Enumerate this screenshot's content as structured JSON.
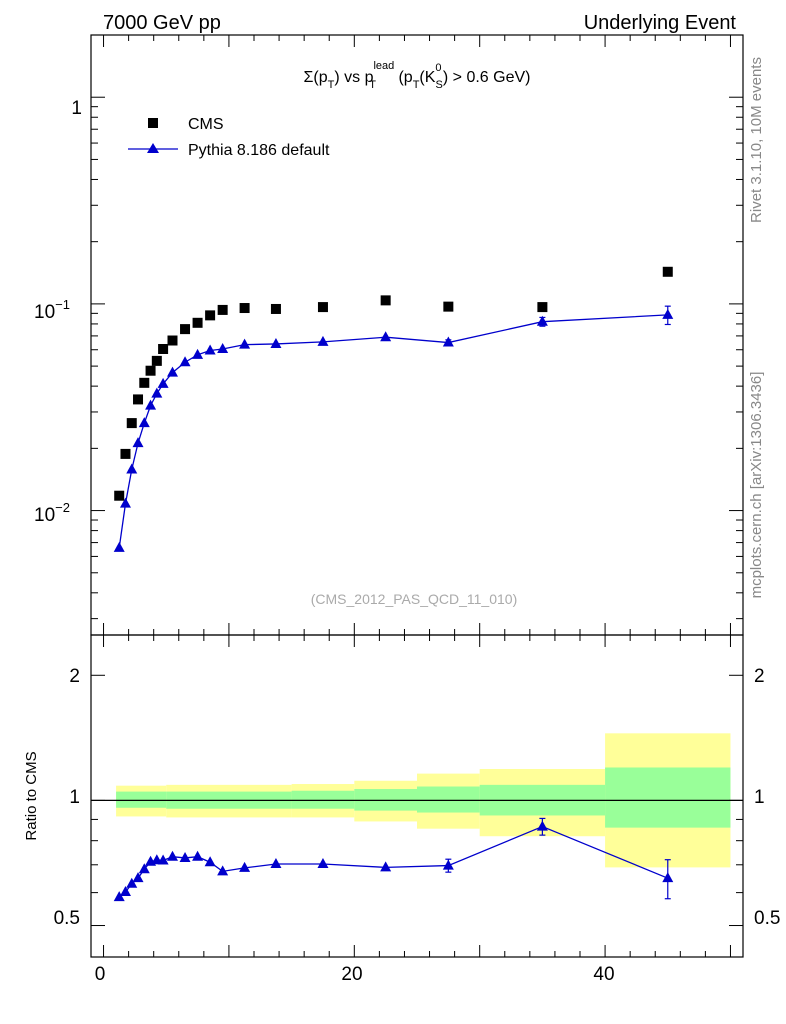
{
  "header": {
    "energy_label": "7000 GeV pp",
    "process_label": "Underlying Event"
  },
  "side_labels": {
    "rivet": "Rivet 3.1.10,  10M events",
    "mcplots": "mcplots.cern.ch [arXiv:1306.3436]"
  },
  "colors": {
    "mc": "#0000cc",
    "data": "#000000",
    "band_inner": "#99ff99",
    "band_outer": "#ffff99"
  },
  "chart_data": [
    {
      "type": "scatter",
      "title_parts": {
        "sigma": "Σ(p",
        "t_sub": "T",
        "vs": ") vs p",
        "lead_sup": "lead",
        "lead_sub": "T",
        "open": " (p",
        "k_t_sub": "T",
        "k_mid": "(K",
        "k_sup": "0",
        "k_sub": "S",
        "tail": ") > 0.6 GeV)"
      },
      "yscale": "log",
      "xlim": [
        -1,
        51
      ],
      "ylim": [
        0.0025,
        2.0
      ],
      "y_ticks": [
        {
          "value": 0.01,
          "base": "10",
          "exp": "−2"
        },
        {
          "value": 0.1,
          "base": "10",
          "exp": "−1"
        },
        {
          "value": 1,
          "base": "1",
          "exp": ""
        }
      ],
      "legend": [
        "CMS",
        "Pythia 8.186 default"
      ],
      "source_label": "(CMS_2012_PAS_QCD_11_010)",
      "series": [
        {
          "name": "CMS",
          "marker": "square",
          "x": [
            1.25,
            1.75,
            2.25,
            2.75,
            3.25,
            3.75,
            4.25,
            4.75,
            5.5,
            6.5,
            7.5,
            8.5,
            9.5,
            11.25,
            13.75,
            17.5,
            22.5,
            27.5,
            35,
            45
          ],
          "y": [
            0.0118,
            0.0188,
            0.0265,
            0.0345,
            0.0415,
            0.0475,
            0.053,
            0.0605,
            0.0665,
            0.0755,
            0.081,
            0.088,
            0.0935,
            0.0955,
            0.0945,
            0.0965,
            0.104,
            0.097,
            0.0965,
            0.143
          ]
        },
        {
          "name": "Pythia 8.186 default",
          "marker": "triangle",
          "x": [
            1.25,
            1.75,
            2.25,
            2.75,
            3.25,
            3.75,
            4.25,
            4.75,
            5.5,
            6.5,
            7.5,
            8.5,
            9.5,
            11.25,
            13.75,
            17.5,
            22.5,
            27.5,
            35,
            45
          ],
          "y": [
            0.0066,
            0.0108,
            0.0158,
            0.0212,
            0.0265,
            0.0322,
            0.0368,
            0.041,
            0.0465,
            0.0522,
            0.0567,
            0.0595,
            0.0605,
            0.0635,
            0.064,
            0.0655,
            0.069,
            0.065,
            0.082,
            0.0885
          ],
          "y_err": [
            0,
            0,
            0,
            0,
            0,
            0,
            0,
            0,
            0,
            0,
            0,
            0,
            0,
            0,
            0,
            0,
            0,
            0.002,
            0.004,
            0.009
          ]
        }
      ]
    },
    {
      "type": "line",
      "ylabel": "Ratio to CMS",
      "yscale": "log",
      "xlim": [
        -1,
        51
      ],
      "ylim": [
        0.42,
        2.5
      ],
      "y_tick_labels": [
        {
          "value": 0.5,
          "label": "0.5"
        },
        {
          "value": 1,
          "label": "1"
        },
        {
          "value": 2,
          "label": "2"
        }
      ],
      "x_tick_labels": [
        {
          "value": 0,
          "label": "0"
        },
        {
          "value": 20,
          "label": "20"
        },
        {
          "value": 40,
          "label": "40"
        }
      ],
      "reference": 1.0,
      "bands": [
        {
          "x_low": 1,
          "x_high": 5,
          "inner": [
            0.96,
            1.05
          ],
          "outer": [
            0.915,
            1.085
          ]
        },
        {
          "x_low": 5,
          "x_high": 15,
          "inner": [
            0.955,
            1.05
          ],
          "outer": [
            0.91,
            1.09
          ]
        },
        {
          "x_low": 15,
          "x_high": 20,
          "inner": [
            0.955,
            1.055
          ],
          "outer": [
            0.91,
            1.095
          ]
        },
        {
          "x_low": 20,
          "x_high": 25,
          "inner": [
            0.945,
            1.065
          ],
          "outer": [
            0.89,
            1.115
          ]
        },
        {
          "x_low": 25,
          "x_high": 30,
          "inner": [
            0.935,
            1.08
          ],
          "outer": [
            0.855,
            1.16
          ]
        },
        {
          "x_low": 30,
          "x_high": 40,
          "inner": [
            0.92,
            1.09
          ],
          "outer": [
            0.82,
            1.19
          ]
        },
        {
          "x_low": 40,
          "x_high": 50,
          "inner": [
            0.86,
            1.2
          ],
          "outer": [
            0.69,
            1.45
          ]
        }
      ],
      "series": [
        {
          "name": "Pythia 8.186 default / CMS",
          "x": [
            1.25,
            1.75,
            2.25,
            2.75,
            3.25,
            3.75,
            4.25,
            4.75,
            5.5,
            6.5,
            7.5,
            8.5,
            9.5,
            11.25,
            13.75,
            17.5,
            22.5,
            27.5,
            35,
            45
          ],
          "y": [
            0.585,
            0.602,
            0.63,
            0.65,
            0.683,
            0.712,
            0.718,
            0.717,
            0.732,
            0.727,
            0.732,
            0.71,
            0.675,
            0.688,
            0.703,
            0.703,
            0.69,
            0.697,
            0.865,
            0.65
          ],
          "y_err": [
            0,
            0,
            0,
            0,
            0,
            0,
            0,
            0,
            0,
            0,
            0,
            0,
            0,
            0,
            0,
            0,
            0,
            0.025,
            0.04,
            0.07
          ]
        }
      ]
    }
  ]
}
